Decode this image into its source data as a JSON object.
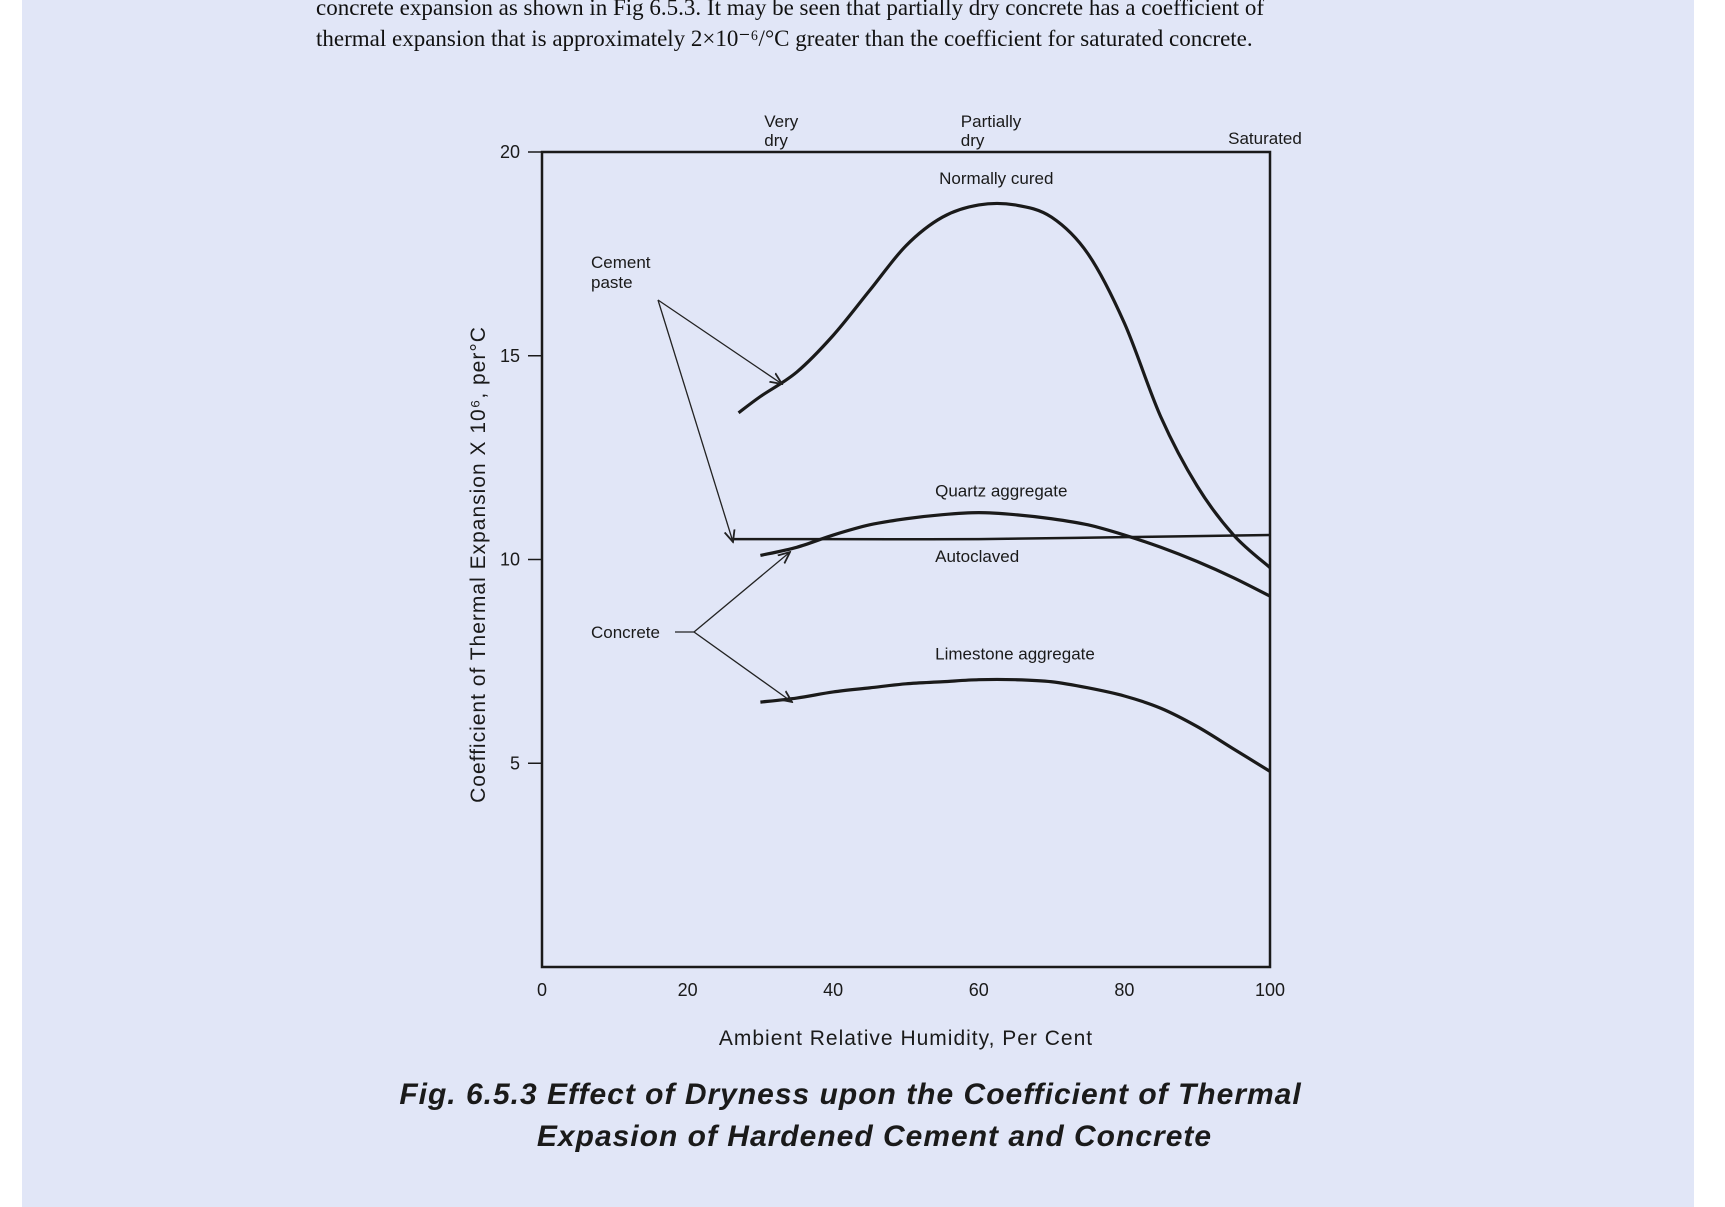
{
  "intro_text": {
    "line1": "concrete expansion as shown in  Fig 6.5.3. It may be seen that partially  dry concrete has  a coefficient of",
    "line2": "thermal expansion that is approximately 2×10⁻⁶/°C greater than the coefficient for saturated concrete."
  },
  "caption": {
    "line1": "Fig. 6.5.3 Effect of Dryness upon the Coefficient of Thermal",
    "line2": "Expasion of Hardened Cement and Concrete"
  },
  "chart_data": {
    "type": "line",
    "xlabel": "Ambient Relative Humidity, Per Cent",
    "ylabel": "Coefficient of Thermal Expansion X 10⁶, per°C",
    "xlim": [
      0,
      100
    ],
    "ylim": [
      0,
      20
    ],
    "x_ticks": [
      "0",
      "20",
      "40",
      "60",
      "80",
      "100"
    ],
    "y_ticks": [
      "5",
      "10",
      "15",
      "20"
    ],
    "top_labels": [
      {
        "text": [
          "Very",
          "dry"
        ],
        "x": 33
      },
      {
        "text": [
          "Partially",
          "dry"
        ],
        "x": 60
      },
      {
        "text": [
          "Saturated"
        ],
        "x": 100
      }
    ],
    "series": [
      {
        "name": "Normally cured",
        "x": [
          27,
          30,
          35,
          40,
          45,
          50,
          55,
          60,
          65,
          70,
          75,
          80,
          85,
          90,
          95,
          100
        ],
        "y": [
          13.6,
          14.0,
          14.6,
          15.5,
          16.6,
          17.7,
          18.4,
          18.7,
          18.7,
          18.4,
          17.5,
          15.8,
          13.5,
          11.8,
          10.6,
          9.8
        ]
      },
      {
        "name": "Autoclaved",
        "x": [
          26,
          40,
          60,
          80,
          100
        ],
        "y": [
          10.5,
          10.5,
          10.5,
          10.55,
          10.6
        ]
      },
      {
        "name": "Quartz aggregate",
        "x": [
          30,
          35,
          40,
          45,
          50,
          55,
          60,
          65,
          70,
          75,
          80,
          85,
          90,
          95,
          100
        ],
        "y": [
          10.1,
          10.3,
          10.6,
          10.85,
          11.0,
          11.1,
          11.15,
          11.1,
          11.0,
          10.85,
          10.6,
          10.3,
          9.95,
          9.55,
          9.1
        ]
      },
      {
        "name": "Limestone aggregate",
        "x": [
          30,
          35,
          40,
          45,
          50,
          55,
          60,
          65,
          70,
          75,
          80,
          85,
          90,
          95,
          100
        ],
        "y": [
          6.5,
          6.6,
          6.75,
          6.85,
          6.95,
          7.0,
          7.05,
          7.05,
          7.0,
          6.85,
          6.65,
          6.35,
          5.9,
          5.35,
          4.8
        ]
      }
    ],
    "annotations": [
      {
        "text": "Cement paste"
      },
      {
        "text": "Concrete"
      }
    ]
  }
}
